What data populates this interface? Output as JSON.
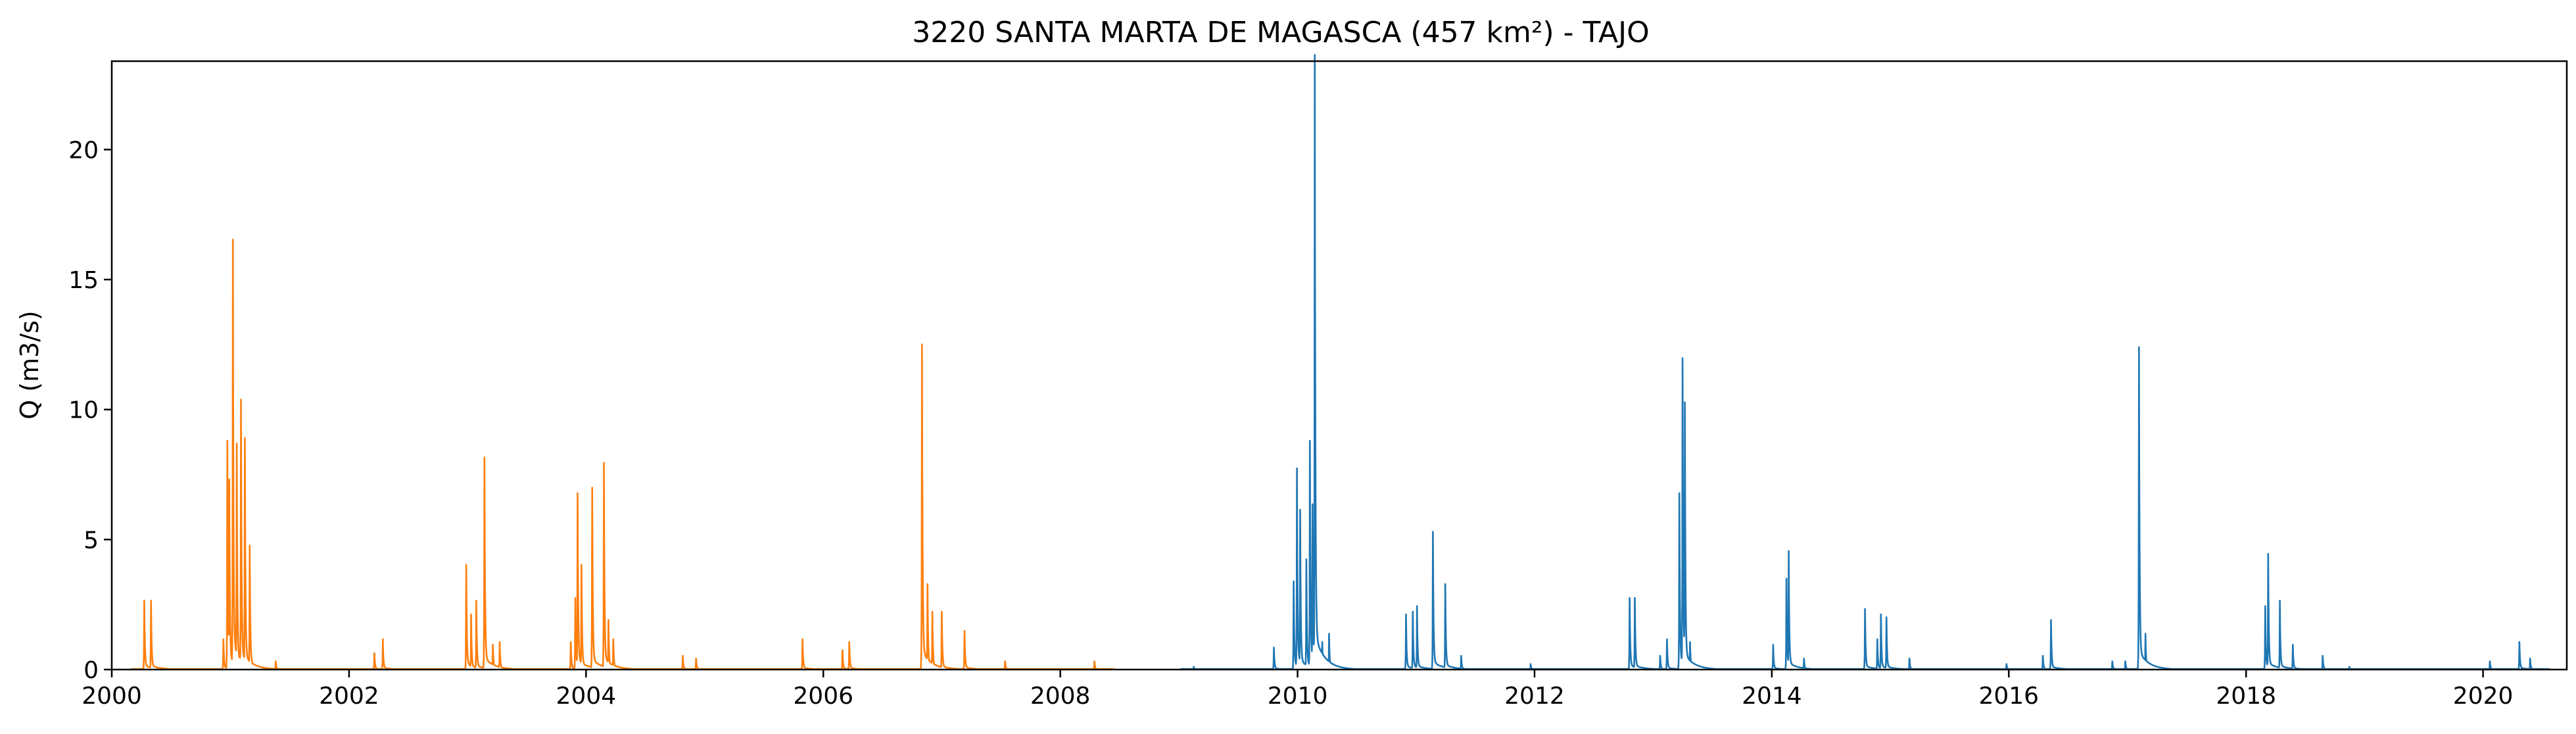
{
  "chart_data": {
    "type": "line",
    "title": "3220 SANTA MARTA DE MAGASCA (457 km²) - TAJO",
    "xlabel": "",
    "ylabel": "Q (m3/s)",
    "xlim": [
      "2000-01-01",
      "2020-09-15"
    ],
    "ylim": [
      0,
      23.4
    ],
    "grid": false,
    "x_ticks": [
      "2000",
      "2002",
      "2004",
      "2006",
      "2008",
      "2010",
      "2012",
      "2014",
      "2016",
      "2018",
      "2020"
    ],
    "y_ticks": [
      0,
      5,
      10,
      15,
      20
    ],
    "colors": {
      "series_1": "#ff7f0e",
      "series_2": "#1f77b4"
    },
    "series": [
      {
        "color": "#ff7f0e",
        "base": 0.02,
        "peaks": [
          [
            "2000-04-10",
            2.5
          ],
          [
            "2000-05-01",
            2.5
          ],
          [
            "2000-12-10",
            1.1
          ],
          [
            "2000-12-22",
            8.3
          ],
          [
            "2000-12-28",
            6.9
          ],
          [
            "2001-01-08",
            15.6
          ],
          [
            "2001-01-20",
            8.2
          ],
          [
            "2001-02-02",
            9.8
          ],
          [
            "2001-02-14",
            8.4
          ],
          [
            "2001-03-01",
            4.5
          ],
          [
            "2001-05-20",
            0.3
          ],
          [
            "2002-03-20",
            0.6
          ],
          [
            "2002-04-15",
            1.1
          ],
          [
            "2002-12-28",
            3.8
          ],
          [
            "2003-01-12",
            2.0
          ],
          [
            "2003-01-28",
            2.5
          ],
          [
            "2003-02-22",
            7.7
          ],
          [
            "2003-03-20",
            0.9
          ],
          [
            "2003-04-10",
            1.0
          ],
          [
            "2003-11-15",
            1.0
          ],
          [
            "2003-11-29",
            2.6
          ],
          [
            "2003-12-06",
            6.4
          ],
          [
            "2003-12-18",
            3.8
          ],
          [
            "2004-01-20",
            6.6
          ],
          [
            "2004-02-25",
            7.5
          ],
          [
            "2004-03-10",
            1.8
          ],
          [
            "2004-03-25",
            1.1
          ],
          [
            "2004-10-25",
            0.5
          ],
          [
            "2004-12-05",
            0.4
          ],
          [
            "2005-10-29",
            1.1
          ],
          [
            "2006-03-01",
            0.7
          ],
          [
            "2006-03-22",
            1.0
          ],
          [
            "2006-11-01",
            11.8
          ],
          [
            "2006-11-18",
            3.1
          ],
          [
            "2006-12-03",
            2.1
          ],
          [
            "2007-01-01",
            2.1
          ],
          [
            "2007-03-12",
            1.4
          ],
          [
            "2007-07-15",
            0.3
          ],
          [
            "2008-04-15",
            0.3
          ]
        ]
      },
      {
        "color": "#1f77b4",
        "base": 0.02,
        "peaks": [
          [
            "2009-02-15",
            0.1
          ],
          [
            "2009-10-20",
            0.8
          ],
          [
            "2009-12-20",
            3.2
          ],
          [
            "2009-12-30",
            7.3
          ],
          [
            "2010-01-09",
            5.8
          ],
          [
            "2010-01-28",
            4.0
          ],
          [
            "2010-02-08",
            8.3
          ],
          [
            "2010-02-16",
            6.0
          ],
          [
            "2010-02-23",
            22.3
          ],
          [
            "2010-03-18",
            1.0
          ],
          [
            "2010-04-08",
            1.3
          ],
          [
            "2010-12-01",
            2.0
          ],
          [
            "2010-12-22",
            2.1
          ],
          [
            "2011-01-04",
            2.3
          ],
          [
            "2011-02-22",
            5.0
          ],
          [
            "2011-04-01",
            3.1
          ],
          [
            "2011-05-20",
            0.5
          ],
          [
            "2011-12-20",
            0.2
          ],
          [
            "2012-10-20",
            2.6
          ],
          [
            "2012-11-05",
            2.6
          ],
          [
            "2013-01-22",
            0.5
          ],
          [
            "2013-02-12",
            1.1
          ],
          [
            "2013-03-22",
            6.4
          ],
          [
            "2013-04-01",
            11.3
          ],
          [
            "2013-04-08",
            9.7
          ],
          [
            "2013-04-24",
            1.0
          ],
          [
            "2014-01-05",
            0.9
          ],
          [
            "2014-02-15",
            3.3
          ],
          [
            "2014-02-22",
            4.3
          ],
          [
            "2014-04-10",
            0.4
          ],
          [
            "2014-10-15",
            2.2
          ],
          [
            "2014-11-22",
            1.1
          ],
          [
            "2014-12-03",
            2.0
          ],
          [
            "2014-12-20",
            1.9
          ],
          [
            "2015-03-01",
            0.4
          ],
          [
            "2015-12-25",
            0.2
          ],
          [
            "2016-04-15",
            0.5
          ],
          [
            "2016-05-10",
            1.8
          ],
          [
            "2016-11-15",
            0.3
          ],
          [
            "2016-12-25",
            0.3
          ],
          [
            "2017-02-05",
            11.7
          ],
          [
            "2017-02-25",
            1.3
          ],
          [
            "2018-03-01",
            2.3
          ],
          [
            "2018-03-10",
            4.2
          ],
          [
            "2018-04-15",
            2.5
          ],
          [
            "2018-05-25",
            0.9
          ],
          [
            "2018-08-25",
            0.5
          ],
          [
            "2018-11-15",
            0.1
          ],
          [
            "2020-01-22",
            0.3
          ],
          [
            "2020-04-22",
            1.0
          ],
          [
            "2020-05-25",
            0.4
          ]
        ]
      }
    ]
  }
}
